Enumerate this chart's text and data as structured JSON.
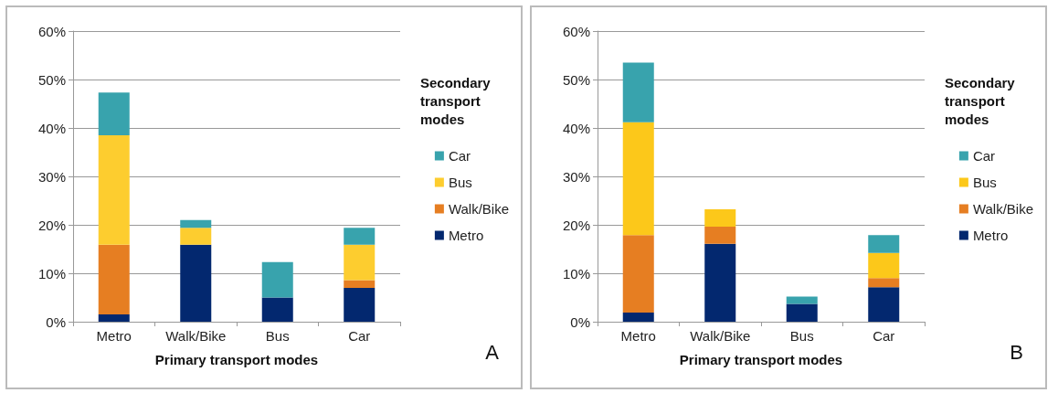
{
  "chart_data": [
    {
      "type": "bar",
      "stacked": true,
      "categories": [
        "Metro",
        "Walk/Bike",
        "Bus",
        "Car"
      ],
      "xlabel": "Primary transport modes",
      "legend_title": "Secondary transport modes",
      "legend": "right",
      "grid": "y",
      "annotations": [
        "A"
      ],
      "ylim": [
        0,
        60
      ],
      "yticks": [
        {
          "value": 0,
          "label": "0%"
        },
        {
          "value": 10,
          "label": "10%"
        },
        {
          "value": 20,
          "label": "20%"
        },
        {
          "value": 30,
          "label": "30%"
        },
        {
          "value": 40,
          "label": "40%"
        },
        {
          "value": 50,
          "label": "50%"
        },
        {
          "value": 60,
          "label": "60%"
        }
      ],
      "series": [
        {
          "name": "Metro",
          "color": "#03286f",
          "values": [
            1.5,
            15.9,
            5.0,
            7.0
          ]
        },
        {
          "name": "Walk/Bike",
          "color": "#e67e22",
          "values": [
            14.4,
            0,
            0,
            1.6
          ]
        },
        {
          "name": "Bus",
          "color": "#fdcd2f",
          "values": [
            22.6,
            3.5,
            0,
            7.3
          ]
        },
        {
          "name": "Car",
          "color": "#38a3ad",
          "values": [
            8.8,
            1.6,
            7.3,
            3.5
          ]
        }
      ]
    },
    {
      "type": "bar",
      "stacked": true,
      "categories": [
        "Metro",
        "Walk/Bike",
        "Bus",
        "Car"
      ],
      "xlabel": "Primary transport modes",
      "legend_title": "Secondary transport modes",
      "legend": "right",
      "grid": "y",
      "annotations": [
        "B"
      ],
      "ylim": [
        0,
        60
      ],
      "yticks": [
        {
          "value": 0,
          "label": "0%"
        },
        {
          "value": 10,
          "label": "10%"
        },
        {
          "value": 20,
          "label": "20%"
        },
        {
          "value": 30,
          "label": "30%"
        },
        {
          "value": 40,
          "label": "40%"
        },
        {
          "value": 50,
          "label": "50%"
        },
        {
          "value": 60,
          "label": "60%"
        }
      ],
      "series": [
        {
          "name": "Metro",
          "color": "#03286f",
          "values": [
            1.9,
            16.1,
            3.7,
            7.1
          ]
        },
        {
          "name": "Walk/Bike",
          "color": "#e67e22",
          "values": [
            16.0,
            3.5,
            0,
            1.9
          ]
        },
        {
          "name": "Bus",
          "color": "#fcc81a",
          "values": [
            23.3,
            3.6,
            0,
            5.2
          ]
        },
        {
          "name": "Car",
          "color": "#38a3ad",
          "values": [
            12.3,
            0,
            1.5,
            3.7
          ]
        }
      ]
    }
  ]
}
